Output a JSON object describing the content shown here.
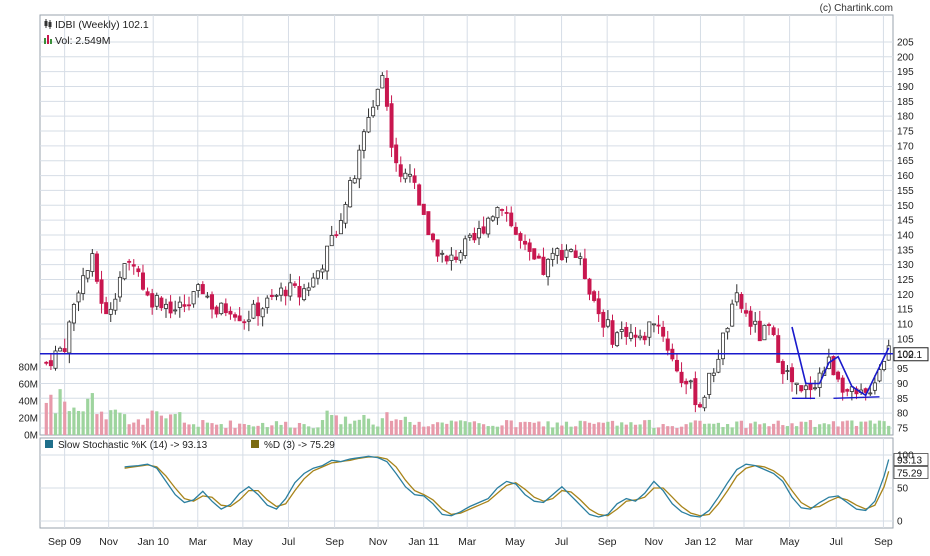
{
  "copyright": "(c) Chartink.com",
  "legend_top": {
    "title": "IDBI (Weekly) 102.1",
    "volume": "Vol: 2.549M"
  },
  "legend_bottom": {
    "k_label": "Slow Stochastic %K (14) -> 93.13",
    "d_label": "%D (3) -> 75.29"
  },
  "colors": {
    "up": "#2f2f2f",
    "down": "#c8174f",
    "vol_up": "#9ed49e",
    "vol_down": "#e79aaa",
    "k_line": "#2b7fa0",
    "d_line": "#a8841a",
    "support": "#1a1acc",
    "grid": "#d6dde6",
    "badge_bg": "#ffffff"
  },
  "chart_data": [
    {
      "type": "candlestick",
      "title": "IDBI (Weekly) 102.1",
      "ylim": [
        75,
        208
      ],
      "y_ticks": [
        75,
        80,
        85,
        90,
        95,
        100,
        105,
        110,
        115,
        120,
        125,
        130,
        135,
        140,
        145,
        150,
        155,
        160,
        165,
        170,
        175,
        180,
        185,
        190,
        195,
        200,
        205
      ],
      "x_labels": [
        "Sep 09",
        "Nov",
        "Jan 10",
        "Mar",
        "May",
        "Jul",
        "Sep",
        "Nov",
        "Jan 11",
        "Mar",
        "May",
        "Jul",
        "Sep",
        "Nov",
        "Jan 12",
        "Mar",
        "May",
        "Jul",
        "Sep"
      ],
      "last_price": "102.1",
      "support_level": 100,
      "anchors": [
        [
          0,
          97
        ],
        [
          4,
          103
        ],
        [
          7,
          123
        ],
        [
          10,
          131
        ],
        [
          13,
          112
        ],
        [
          16,
          126
        ],
        [
          19,
          132
        ],
        [
          22,
          119
        ],
        [
          25,
          118
        ],
        [
          28,
          115
        ],
        [
          31,
          117
        ],
        [
          34,
          122
        ],
        [
          37,
          114
        ],
        [
          40,
          116
        ],
        [
          43,
          112
        ],
        [
          46,
          115
        ],
        [
          49,
          118
        ],
        [
          52,
          122
        ],
        [
          55,
          120
        ],
        [
          58,
          125
        ],
        [
          61,
          134
        ],
        [
          64,
          147
        ],
        [
          67,
          160
        ],
        [
          70,
          180
        ],
        [
          73,
          194
        ],
        [
          75,
          172
        ],
        [
          77,
          158
        ],
        [
          79,
          162
        ],
        [
          81,
          148
        ],
        [
          84,
          138
        ],
        [
          87,
          130
        ],
        [
          90,
          135
        ],
        [
          93,
          138
        ],
        [
          96,
          146
        ],
        [
          99,
          151
        ],
        [
          102,
          140
        ],
        [
          105,
          132
        ],
        [
          108,
          128
        ],
        [
          111,
          134
        ],
        [
          114,
          136
        ],
        [
          117,
          127
        ],
        [
          120,
          114
        ],
        [
          123,
          106
        ],
        [
          126,
          108
        ],
        [
          129,
          104
        ],
        [
          132,
          112
        ],
        [
          134,
          107
        ],
        [
          136,
          98
        ],
        [
          138,
          92
        ],
        [
          140,
          88
        ],
        [
          142,
          83
        ],
        [
          145,
          95
        ],
        [
          148,
          110
        ],
        [
          150,
          118
        ],
        [
          152,
          113
        ],
        [
          155,
          106
        ],
        [
          157,
          108
        ],
        [
          160,
          96
        ],
        [
          162,
          90
        ],
        [
          164,
          86
        ],
        [
          167,
          91
        ],
        [
          170,
          97
        ],
        [
          172,
          93
        ],
        [
          174,
          87
        ],
        [
          176,
          85
        ],
        [
          178,
          86
        ],
        [
          180,
          92
        ],
        [
          182,
          99
        ],
        [
          183,
          102.1
        ]
      ],
      "volume": {
        "labels": [
          "80M",
          "60M",
          "40M",
          "20M",
          "0M"
        ],
        "ticks": [
          80,
          60,
          40,
          20,
          0
        ],
        "ylim": [
          0,
          90
        ]
      }
    },
    {
      "type": "line",
      "series": [
        {
          "name": "Slow Stochastic %K (14) -> 93.13",
          "last": "93.13"
        },
        {
          "name": "%D (3) -> 75.29",
          "last": "75.29"
        }
      ],
      "ylim": [
        0,
        100
      ],
      "y_ticks": [
        0,
        50,
        100
      ],
      "x_start_week": 17,
      "anchors_k": [
        [
          17,
          82
        ],
        [
          20,
          84
        ],
        [
          22,
          86
        ],
        [
          24,
          80
        ],
        [
          26,
          60
        ],
        [
          28,
          40
        ],
        [
          30,
          28
        ],
        [
          32,
          32
        ],
        [
          34,
          45
        ],
        [
          36,
          30
        ],
        [
          38,
          18
        ],
        [
          40,
          25
        ],
        [
          42,
          42
        ],
        [
          44,
          52
        ],
        [
          46,
          40
        ],
        [
          48,
          24
        ],
        [
          50,
          18
        ],
        [
          52,
          34
        ],
        [
          54,
          58
        ],
        [
          56,
          72
        ],
        [
          58,
          80
        ],
        [
          60,
          84
        ],
        [
          62,
          92
        ],
        [
          64,
          90
        ],
        [
          66,
          94
        ],
        [
          68,
          96
        ],
        [
          70,
          98
        ],
        [
          72,
          96
        ],
        [
          74,
          90
        ],
        [
          76,
          72
        ],
        [
          78,
          52
        ],
        [
          80,
          40
        ],
        [
          82,
          38
        ],
        [
          84,
          26
        ],
        [
          86,
          10
        ],
        [
          88,
          8
        ],
        [
          90,
          14
        ],
        [
          92,
          22
        ],
        [
          94,
          28
        ],
        [
          96,
          34
        ],
        [
          98,
          50
        ],
        [
          100,
          60
        ],
        [
          102,
          56
        ],
        [
          104,
          40
        ],
        [
          106,
          30
        ],
        [
          108,
          28
        ],
        [
          110,
          40
        ],
        [
          112,
          52
        ],
        [
          114,
          38
        ],
        [
          116,
          24
        ],
        [
          118,
          10
        ],
        [
          120,
          6
        ],
        [
          122,
          10
        ],
        [
          124,
          26
        ],
        [
          126,
          34
        ],
        [
          128,
          30
        ],
        [
          130,
          42
        ],
        [
          132,
          60
        ],
        [
          134,
          46
        ],
        [
          136,
          26
        ],
        [
          138,
          14
        ],
        [
          140,
          8
        ],
        [
          142,
          6
        ],
        [
          144,
          16
        ],
        [
          146,
          36
        ],
        [
          148,
          58
        ],
        [
          150,
          78
        ],
        [
          152,
          86
        ],
        [
          154,
          84
        ],
        [
          156,
          78
        ],
        [
          158,
          72
        ],
        [
          160,
          60
        ],
        [
          162,
          36
        ],
        [
          164,
          20
        ],
        [
          166,
          18
        ],
        [
          168,
          28
        ],
        [
          170,
          36
        ],
        [
          172,
          38
        ],
        [
          174,
          28
        ],
        [
          176,
          18
        ],
        [
          178,
          16
        ],
        [
          180,
          30
        ],
        [
          182,
          68
        ],
        [
          183,
          93.13
        ]
      ],
      "anchors_d": [
        [
          17,
          80
        ],
        [
          20,
          83
        ],
        [
          22,
          85
        ],
        [
          24,
          82
        ],
        [
          26,
          68
        ],
        [
          28,
          50
        ],
        [
          30,
          34
        ],
        [
          32,
          30
        ],
        [
          34,
          38
        ],
        [
          36,
          36
        ],
        [
          38,
          24
        ],
        [
          40,
          22
        ],
        [
          42,
          32
        ],
        [
          44,
          46
        ],
        [
          46,
          46
        ],
        [
          48,
          32
        ],
        [
          50,
          22
        ],
        [
          52,
          26
        ],
        [
          54,
          46
        ],
        [
          56,
          64
        ],
        [
          58,
          76
        ],
        [
          60,
          82
        ],
        [
          62,
          88
        ],
        [
          64,
          90
        ],
        [
          66,
          92
        ],
        [
          68,
          95
        ],
        [
          70,
          97
        ],
        [
          72,
          97
        ],
        [
          74,
          94
        ],
        [
          76,
          82
        ],
        [
          78,
          62
        ],
        [
          80,
          46
        ],
        [
          82,
          40
        ],
        [
          84,
          32
        ],
        [
          86,
          18
        ],
        [
          88,
          10
        ],
        [
          90,
          12
        ],
        [
          92,
          18
        ],
        [
          94,
          24
        ],
        [
          96,
          30
        ],
        [
          98,
          42
        ],
        [
          100,
          54
        ],
        [
          102,
          58
        ],
        [
          104,
          48
        ],
        [
          106,
          36
        ],
        [
          108,
          30
        ],
        [
          110,
          34
        ],
        [
          112,
          46
        ],
        [
          114,
          44
        ],
        [
          116,
          32
        ],
        [
          118,
          18
        ],
        [
          120,
          10
        ],
        [
          122,
          8
        ],
        [
          124,
          18
        ],
        [
          126,
          30
        ],
        [
          128,
          32
        ],
        [
          130,
          36
        ],
        [
          132,
          50
        ],
        [
          134,
          50
        ],
        [
          136,
          36
        ],
        [
          138,
          22
        ],
        [
          140,
          12
        ],
        [
          142,
          8
        ],
        [
          144,
          10
        ],
        [
          146,
          26
        ],
        [
          148,
          46
        ],
        [
          150,
          68
        ],
        [
          152,
          80
        ],
        [
          154,
          84
        ],
        [
          156,
          82
        ],
        [
          158,
          76
        ],
        [
          160,
          66
        ],
        [
          162,
          46
        ],
        [
          164,
          28
        ],
        [
          166,
          20
        ],
        [
          168,
          22
        ],
        [
          170,
          30
        ],
        [
          172,
          36
        ],
        [
          174,
          32
        ],
        [
          176,
          24
        ],
        [
          178,
          18
        ],
        [
          180,
          24
        ],
        [
          182,
          52
        ],
        [
          183,
          75.29
        ]
      ]
    }
  ]
}
